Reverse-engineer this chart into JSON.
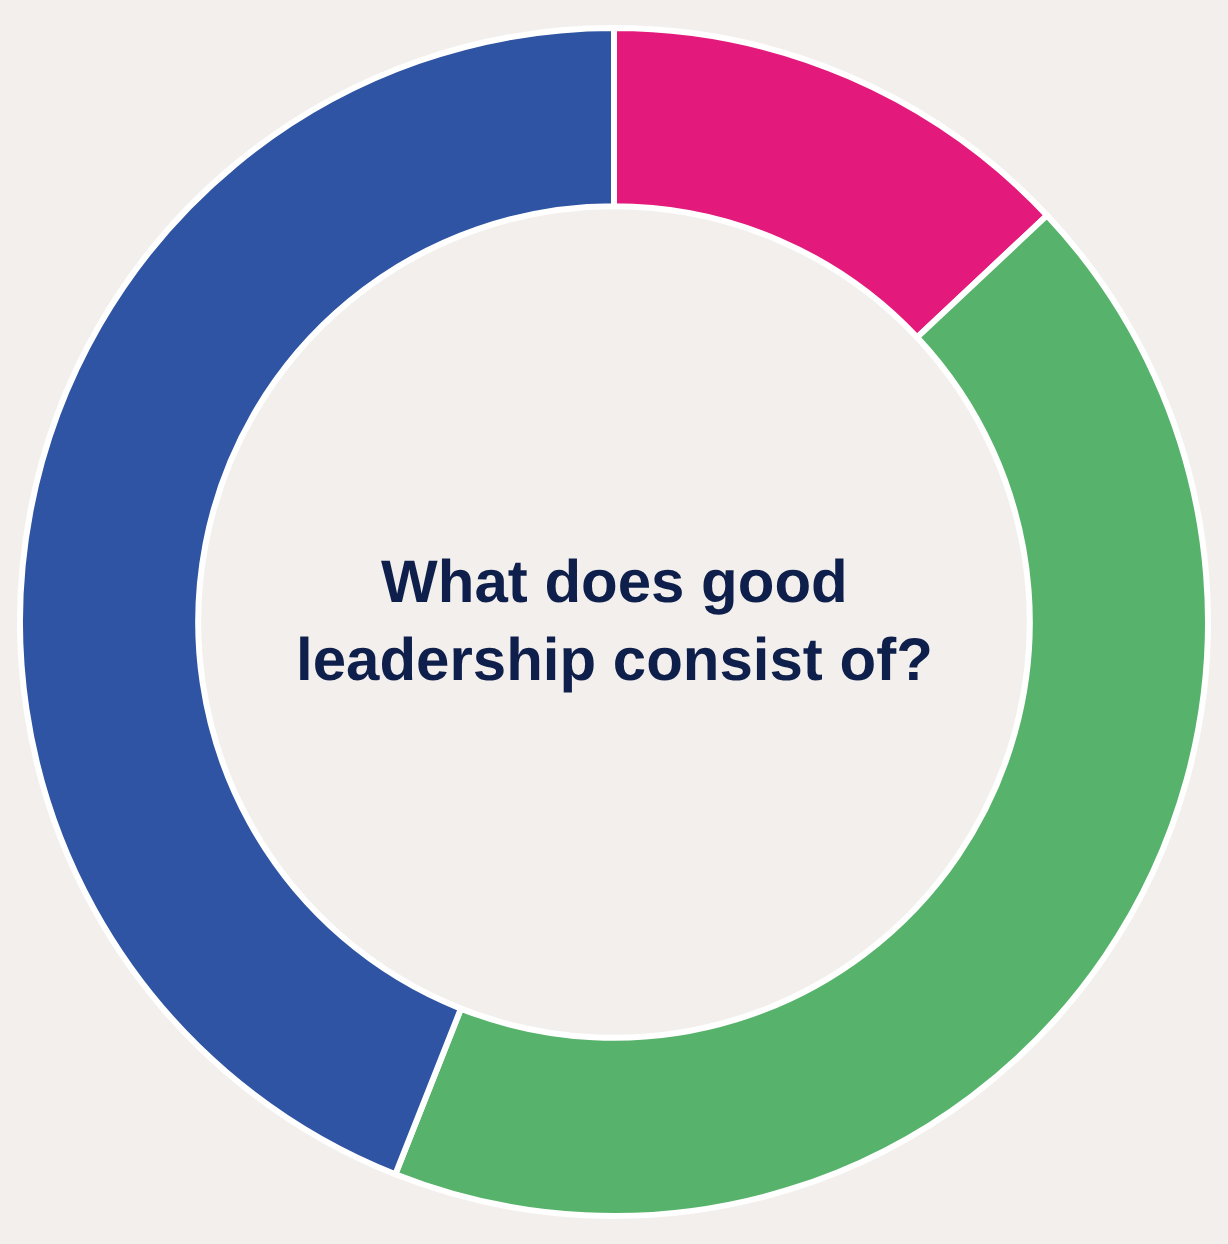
{
  "chart_data": {
    "type": "donut",
    "title": "What does good leadership consist of?",
    "categories": [
      null,
      null,
      null
    ],
    "values": [
      13,
      43,
      44
    ],
    "colors": [
      "#e31a7c",
      "#57b36b",
      "#2f54a3"
    ],
    "legend": false
  }
}
